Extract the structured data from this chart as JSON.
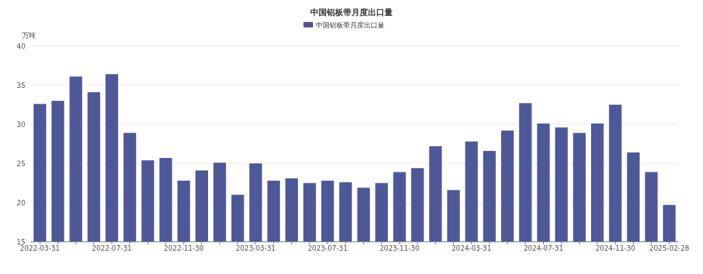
{
  "chart_data": {
    "type": "bar",
    "title": "中国铝板带月度出口量",
    "ylabel": "万吨",
    "categories": [
      "2022-03-31",
      null,
      null,
      null,
      "2022-07-31",
      null,
      null,
      null,
      "2022-11-30",
      null,
      null,
      null,
      "2023-03-31",
      null,
      null,
      null,
      "2023-07-31",
      null,
      null,
      null,
      "2023-11-30",
      null,
      null,
      null,
      "2024-03-31",
      null,
      null,
      null,
      "2024-07-31",
      null,
      null,
      null,
      "2024-11-30",
      null,
      null,
      "2025-02-28"
    ],
    "series": [
      {
        "name": "中国铝板带月度出口量",
        "color": "#4e5898",
        "values": [
          32.6,
          33.0,
          36.1,
          34.1,
          36.4,
          28.9,
          25.4,
          25.7,
          22.8,
          24.1,
          25.1,
          21.0,
          25.0,
          22.8,
          23.1,
          22.5,
          22.8,
          22.6,
          21.9,
          22.5,
          23.9,
          24.4,
          27.2,
          21.6,
          27.8,
          26.6,
          29.2,
          32.7,
          30.1,
          29.6,
          28.9,
          30.1,
          32.5,
          26.4,
          23.9,
          19.7
        ]
      }
    ],
    "ylim": [
      15,
      40
    ],
    "yticks": [
      15,
      20,
      25,
      30,
      35,
      40
    ],
    "grid": "y",
    "legend": "top"
  }
}
